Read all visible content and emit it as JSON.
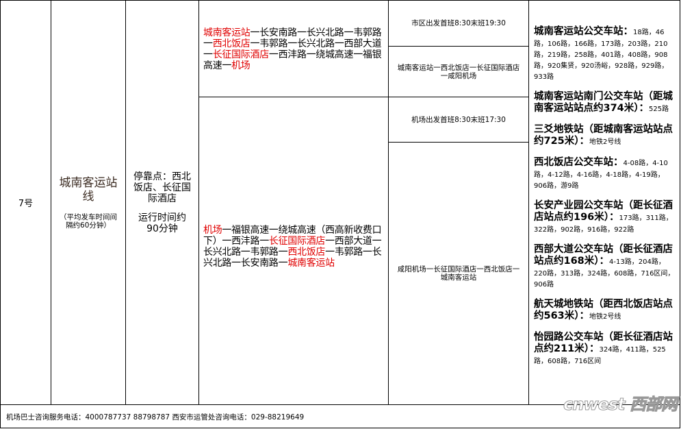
{
  "line_number": "7号",
  "line_name": "城南客运站线",
  "interval_note": "（平均发车时间间隔约60分钟）",
  "stops_note": "停靠点：西北饭店、长征国际酒店",
  "duration_note": "运行时间约90分钟",
  "outbound": {
    "route": [
      {
        "text": "城南客运站",
        "red": true
      },
      {
        "text": "一长安南路一长兴北路一韦郭路一",
        "red": false
      },
      {
        "text": "西北饭店",
        "red": true
      },
      {
        "text": "一韦郭路一长兴北路一西部大道一",
        "red": false
      },
      {
        "text": "长征国际酒店",
        "red": true
      },
      {
        "text": "一西沣路一绕城高速一福银高速一",
        "red": false
      },
      {
        "text": "机场",
        "red": true
      }
    ],
    "schedule": "市区出发首班8:30末班19:30",
    "summary": "城南客运站一西北饭店一长征国际酒店一咸阳机场"
  },
  "inbound": {
    "route": [
      {
        "text": "机场",
        "red": true
      },
      {
        "text": "一福银高速一绕城高速（西高新收费口下）一西沣路一",
        "red": false
      },
      {
        "text": "长征国际酒店",
        "red": true
      },
      {
        "text": "一西部大道一长兴北路一韦郭路一",
        "red": false
      },
      {
        "text": "西北饭店",
        "red": true
      },
      {
        "text": "一韦郭路一长兴北路一长安南路一",
        "red": false
      },
      {
        "text": "城南客运站",
        "red": true
      }
    ],
    "schedule": "机场出发首班8:30末班17:30",
    "summary": "咸阳机场一长征国际酒店一西北饭店一城南客运站"
  },
  "bus_stops": [
    {
      "name": "城南客运站公交车站：",
      "routes": "18路，46路，106路，166路，173路，203路，210路，219路，258路，401路，408路，908路，920集贤，920汤峪，928路，929路，933路"
    },
    {
      "name": "城南客运站南门公交车站（距城南客运站站点约374米）：",
      "routes": "525路"
    },
    {
      "name": "三爻地铁站（距城南客运站站点约725米）：",
      "routes": "地铁2号线"
    },
    {
      "name": "西北饭店公交车站：",
      "routes": "4-08路，4-10路，4-12路，4-16路，4-18路，4-19路，906路，游9路"
    },
    {
      "name": "长安产业园公交车站（距长征酒店站点约196米）：",
      "routes": "173路，311路，322路，902路，916路，922路"
    },
    {
      "name": "西部大道公交车站（距长征酒店站点约168米）：",
      "routes": "4-13路，204路，220路，313路，324路，608路，716区间，906路"
    },
    {
      "name": "航天城地铁站（距西北饭店站点约563米）：",
      "routes": "地铁2号线"
    },
    {
      "name": "怡园路公交车站（距长征酒店站点约211米）：",
      "routes": "324路，411路，525路，608路，716区间"
    }
  ],
  "footer": "机场巴士咨询服务电话：4000787737 88798787 西安市运管处咨询电话：029-88219649",
  "watermark": "cnwest 西部网",
  "colors": {
    "highlight": "#e00000",
    "border": "#000000"
  }
}
